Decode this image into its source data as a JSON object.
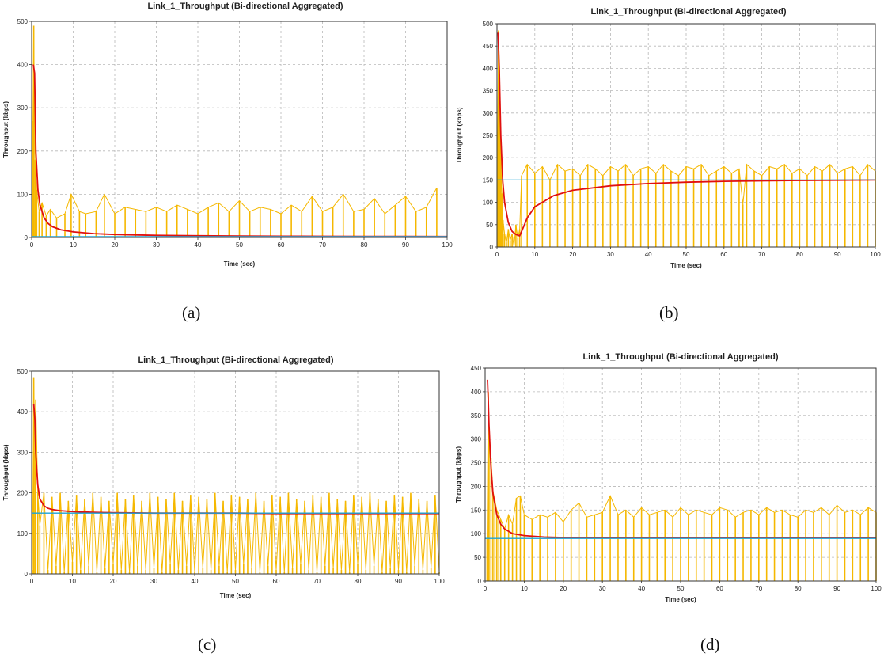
{
  "captions": [
    "(a)",
    "(b)",
    "(c)",
    "(d)"
  ],
  "colors": {
    "raw": "#F5B800",
    "average": "#E01010",
    "reference": "#1AA3D6",
    "grid": "#B8B8B8",
    "frame": "#333333"
  },
  "chart_data": [
    {
      "type": "line",
      "title": "Link_1_Throughput (Bi-directional Aggregated)",
      "xlabel": "Time (sec)",
      "ylabel": "Throughput (kbps)",
      "xlim": [
        0,
        100
      ],
      "ylim": [
        0,
        500
      ],
      "xticks": [
        0,
        10,
        20,
        30,
        40,
        50,
        60,
        70,
        80,
        90,
        100
      ],
      "yticks": [
        0,
        100,
        200,
        300,
        400,
        500
      ],
      "grid": true,
      "series": [
        {
          "kind": "raw",
          "color": "#F5B800",
          "x": [
            0.3,
            0.5,
            0.8,
            1.2,
            1.8,
            2.5,
            3.5,
            4.5,
            6.0,
            8.0,
            9.5,
            11.5,
            13.0,
            15.5,
            17.5,
            20.0,
            22.5,
            25.0,
            27.5,
            30.0,
            32.5,
            35.0,
            37.5,
            40.0,
            42.5,
            45.0,
            47.5,
            50.0,
            52.5,
            55.0,
            57.5,
            60.0,
            62.5,
            65.0,
            67.5,
            70.0,
            72.5,
            75.0,
            77.5,
            80.0,
            82.5,
            85.0,
            87.5,
            90.0,
            92.5,
            95.0,
            97.5
          ],
          "y": [
            270,
            490,
            180,
            110,
            60,
            80,
            50,
            65,
            45,
            55,
            100,
            60,
            55,
            60,
            100,
            55,
            70,
            65,
            60,
            70,
            60,
            75,
            65,
            55,
            70,
            80,
            60,
            85,
            60,
            70,
            65,
            55,
            75,
            60,
            95,
            60,
            70,
            100,
            60,
            65,
            90,
            55,
            75,
            95,
            60,
            70,
            115
          ]
        },
        {
          "kind": "average",
          "color": "#E01010",
          "x": [
            0.4,
            0.7,
            1.0,
            1.5,
            2,
            3,
            4,
            5,
            7,
            10,
            15,
            20,
            30,
            40,
            50,
            60,
            70,
            80,
            90,
            100
          ],
          "y": [
            400,
            380,
            200,
            110,
            75,
            45,
            32,
            25,
            18,
            13,
            9,
            7,
            5,
            4,
            3.5,
            3,
            2.8,
            2.6,
            2.4,
            2.2
          ]
        },
        {
          "kind": "reference",
          "color": "#1AA3D6",
          "x": [
            0,
            100
          ],
          "y": [
            2,
            2
          ]
        }
      ]
    },
    {
      "type": "line",
      "title": "Link_1_Throughput (Bi-directional Aggregated)",
      "xlabel": "Time (sec)",
      "ylabel": "Throughput (kbps)",
      "xlim": [
        0,
        100
      ],
      "ylim": [
        0,
        500
      ],
      "xticks": [
        0,
        10,
        20,
        30,
        40,
        50,
        60,
        70,
        80,
        90,
        100
      ],
      "yticks": [
        0,
        50,
        100,
        150,
        200,
        250,
        300,
        350,
        400,
        450,
        500
      ],
      "grid": true,
      "series": [
        {
          "kind": "raw",
          "color": "#F5B800",
          "x": [
            0.2,
            0.4,
            0.6,
            0.8,
            1.0,
            1.3,
            1.6,
            2.0,
            2.5,
            3.0,
            3.5,
            4.0,
            4.5,
            5.0,
            5.5,
            6.0,
            6.5,
            8,
            10,
            12,
            14,
            16,
            18,
            20,
            22,
            24,
            26,
            28,
            30,
            32,
            34,
            36,
            38,
            40,
            42,
            44,
            46,
            48,
            50,
            52,
            54,
            56,
            58,
            60,
            62,
            64,
            65,
            66,
            68,
            70,
            72,
            74,
            76,
            78,
            80,
            82,
            84,
            86,
            88,
            90,
            92,
            94,
            96,
            98,
            100
          ],
          "y": [
            250,
            485,
            400,
            300,
            200,
            120,
            60,
            30,
            10,
            40,
            15,
            30,
            0,
            50,
            20,
            40,
            160,
            185,
            165,
            180,
            150,
            185,
            170,
            175,
            160,
            185,
            175,
            160,
            180,
            170,
            185,
            160,
            175,
            180,
            165,
            185,
            170,
            160,
            180,
            175,
            185,
            160,
            170,
            180,
            165,
            175,
            95,
            185,
            170,
            160,
            180,
            175,
            185,
            165,
            175,
            160,
            180,
            170,
            185,
            165,
            175,
            180,
            160,
            185,
            170
          ]
        },
        {
          "kind": "average",
          "color": "#E01010",
          "x": [
            0.3,
            0.6,
            1.0,
            1.5,
            2,
            3,
            4,
            5,
            6,
            7,
            8,
            10,
            15,
            20,
            30,
            40,
            50,
            60,
            70,
            80,
            90,
            100
          ],
          "y": [
            480,
            400,
            250,
            150,
            100,
            55,
            35,
            28,
            25,
            45,
            65,
            90,
            115,
            127,
            137,
            142,
            145,
            147,
            148,
            149,
            149.5,
            150
          ]
        },
        {
          "kind": "reference",
          "color": "#1AA3D6",
          "x": [
            0,
            100
          ],
          "y": [
            150,
            150
          ]
        }
      ]
    },
    {
      "type": "line",
      "title": "Link_1_Throughput (Bi-directional Aggregated)",
      "xlabel": "Time (sec)",
      "ylabel": "Throughput (kbps)",
      "xlim": [
        0,
        100
      ],
      "ylim": [
        0,
        500
      ],
      "xticks": [
        0,
        10,
        20,
        30,
        40,
        50,
        60,
        70,
        80,
        90,
        100
      ],
      "yticks": [
        0,
        100,
        200,
        300,
        400,
        500
      ],
      "grid": true,
      "series": [
        {
          "kind": "raw",
          "color": "#F5B800",
          "x": [
            0.2,
            0.5,
            0.8,
            1.0,
            1.5,
            2,
            3,
            4,
            5,
            6,
            7,
            8,
            9,
            10,
            11,
            12,
            13,
            14,
            15,
            16,
            17,
            18,
            19,
            20,
            21,
            22,
            23,
            24,
            25,
            26,
            27,
            28,
            29,
            30,
            31,
            32,
            33,
            34,
            35,
            36,
            37,
            38,
            39,
            40,
            41,
            42,
            43,
            44,
            45,
            46,
            47,
            48,
            49,
            50,
            51,
            52,
            53,
            54,
            55,
            56,
            57,
            58,
            59,
            60,
            61,
            62,
            63,
            64,
            65,
            66,
            67,
            68,
            69,
            70,
            71,
            72,
            73,
            74,
            75,
            76,
            77,
            78,
            79,
            80,
            81,
            82,
            83,
            84,
            85,
            86,
            87,
            88,
            89,
            90,
            91,
            92,
            93,
            94,
            95,
            96,
            97,
            98,
            99,
            100
          ],
          "y": [
            10,
            485,
            300,
            430,
            200,
            120,
            200,
            10,
            190,
            20,
            200,
            5,
            180,
            30,
            195,
            10,
            185,
            20,
            200,
            5,
            190,
            15,
            180,
            25,
            200,
            10,
            185,
            5,
            195,
            20,
            180,
            10,
            200,
            15,
            190,
            5,
            185,
            25,
            200,
            10,
            180,
            20,
            195,
            5,
            190,
            15,
            185,
            10,
            200,
            20,
            180,
            5,
            195,
            10,
            190,
            25,
            185,
            15,
            200,
            5,
            180,
            20,
            195,
            10,
            190,
            5,
            200,
            15,
            185,
            25,
            180,
            10,
            195,
            5,
            190,
            20,
            200,
            15,
            185,
            10,
            180,
            5,
            195,
            25,
            190,
            10,
            200,
            20,
            185,
            5,
            180,
            15,
            195,
            10,
            190,
            5,
            200,
            20,
            185,
            10,
            180,
            15,
            195,
            5
          ]
        },
        {
          "kind": "average",
          "color": "#E01010",
          "x": [
            0.5,
            0.8,
            1.0,
            1.5,
            2,
            3,
            4,
            5,
            7,
            10,
            15,
            20,
            30,
            40,
            50,
            60,
            70,
            80,
            90,
            100
          ],
          "y": [
            420,
            380,
            300,
            220,
            185,
            168,
            162,
            159,
            156,
            154,
            152,
            151,
            150,
            150,
            150,
            149,
            149,
            149,
            149,
            149
          ]
        },
        {
          "kind": "reference",
          "color": "#1AA3D6",
          "x": [
            0,
            100
          ],
          "y": [
            150,
            150
          ]
        }
      ]
    },
    {
      "type": "line",
      "title": "Link_1_Throughput (Bi-directional Aggregated)",
      "xlabel": "Time (sec)",
      "ylabel": "Throughput (kbps)",
      "xlim": [
        0,
        100
      ],
      "ylim": [
        0,
        450
      ],
      "xticks": [
        0,
        10,
        20,
        30,
        40,
        50,
        60,
        70,
        80,
        90,
        100
      ],
      "yticks": [
        0,
        50,
        100,
        150,
        200,
        250,
        300,
        350,
        400,
        450
      ],
      "grid": true,
      "series": [
        {
          "kind": "raw",
          "color": "#F5B800",
          "x": [
            0.5,
            0.8,
            1.0,
            1.5,
            2,
            2.5,
            3,
            3.5,
            4,
            5,
            6,
            7,
            8,
            9,
            10,
            12,
            14,
            16,
            18,
            20,
            22,
            24,
            26,
            28,
            30,
            32,
            34,
            36,
            38,
            40,
            42,
            44,
            46,
            48,
            50,
            52,
            54,
            56,
            58,
            60,
            62,
            64,
            66,
            68,
            70,
            72,
            74,
            76,
            78,
            80,
            82,
            84,
            86,
            88,
            90,
            92,
            94,
            96,
            98,
            100
          ],
          "y": [
            90,
            400,
            300,
            260,
            190,
            170,
            150,
            140,
            130,
            110,
            140,
            120,
            175,
            180,
            140,
            130,
            140,
            135,
            145,
            125,
            150,
            165,
            135,
            140,
            145,
            180,
            140,
            150,
            135,
            155,
            140,
            145,
            150,
            135,
            155,
            140,
            150,
            145,
            140,
            155,
            150,
            135,
            145,
            150,
            140,
            155,
            145,
            150,
            140,
            135,
            150,
            145,
            155,
            140,
            160,
            145,
            150,
            140,
            155,
            145
          ]
        },
        {
          "kind": "average",
          "color": "#E01010",
          "x": [
            0.6,
            0.8,
            1.0,
            1.5,
            2,
            3,
            4,
            5,
            7,
            10,
            15,
            20,
            30,
            40,
            50,
            60,
            70,
            80,
            90,
            100
          ],
          "y": [
            425,
            380,
            330,
            240,
            185,
            140,
            120,
            110,
            100,
            96,
            93,
            92,
            92,
            92,
            92,
            92,
            92,
            92,
            92,
            92
          ]
        },
        {
          "kind": "reference",
          "color": "#1AA3D6",
          "x": [
            0,
            100
          ],
          "y": [
            90,
            90
          ]
        }
      ]
    }
  ]
}
